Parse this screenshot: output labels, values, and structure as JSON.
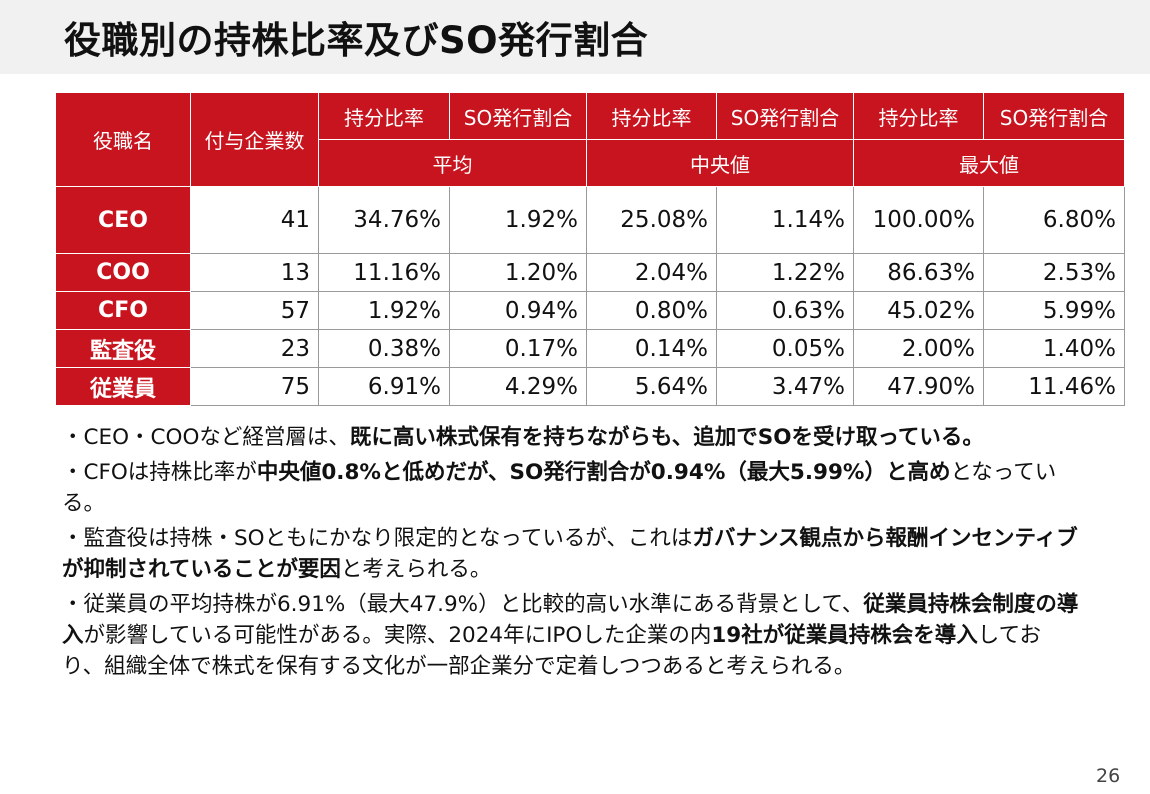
{
  "title": "役職別の持株比率及びSO発行割合",
  "table": {
    "header_role": "役職名",
    "header_companies": "付与企業数",
    "metric_labels": [
      "持分比率",
      "SO発行割合",
      "持分比率",
      "SO発行割合",
      "持分比率",
      "SO発行割合"
    ],
    "group_labels": [
      "平均",
      "中央値",
      "最大値"
    ],
    "rows": [
      {
        "role": "CEO",
        "count": "41",
        "values": [
          "34.76%",
          "1.92%",
          "25.08%",
          "1.14%",
          "100.00%",
          "6.80%"
        ]
      },
      {
        "role": "COO",
        "count": "13",
        "values": [
          "11.16%",
          "1.20%",
          "2.04%",
          "1.22%",
          "86.63%",
          "2.53%"
        ]
      },
      {
        "role": "CFO",
        "count": "57",
        "values": [
          "1.92%",
          "0.94%",
          "0.80%",
          "0.63%",
          "45.02%",
          "5.99%"
        ]
      },
      {
        "role": "監査役",
        "count": "23",
        "values": [
          "0.38%",
          "0.17%",
          "0.14%",
          "0.05%",
          "2.00%",
          "1.40%"
        ]
      },
      {
        "role": "従業員",
        "count": "75",
        "values": [
          "6.91%",
          "4.29%",
          "5.64%",
          "3.47%",
          "47.90%",
          "11.46%"
        ]
      }
    ]
  },
  "bullets": [
    [
      {
        "t": "・CEO・COOなど経営層は、",
        "b": false
      },
      {
        "t": "既に高い株式保有を持ちながらも、追加でSOを受け取っている。",
        "b": true
      }
    ],
    [
      {
        "t": "・CFOは持株比率が",
        "b": false
      },
      {
        "t": "中央値0.8%と低めだが、SO発行割合が0.94%（最大5.99%）と高め",
        "b": true
      },
      {
        "t": "となっている。",
        "b": false
      }
    ],
    [
      {
        "t": "・監査役は持株・SOともにかなり限定的となっているが、これは",
        "b": false
      },
      {
        "t": "ガバナンス観点から報酬インセンティブが抑制されていることが要因",
        "b": true
      },
      {
        "t": "と考えられる。",
        "b": false
      }
    ],
    [
      {
        "t": "・従業員の平均持株が6.91%（最大47.9%）と比較的高い水準にある背景として、",
        "b": false
      },
      {
        "t": "従業員持株会制度の導入",
        "b": true
      },
      {
        "t": "が影響している可能性がある。実際、2024年にIPOした企業の内",
        "b": false
      },
      {
        "t": "19社が従業員持株会を導入",
        "b": true
      },
      {
        "t": "しており、組織全体で株式を保有する文化が一部企業分で定着しつつあると考えられる。",
        "b": false
      }
    ]
  ],
  "page_number": "26"
}
